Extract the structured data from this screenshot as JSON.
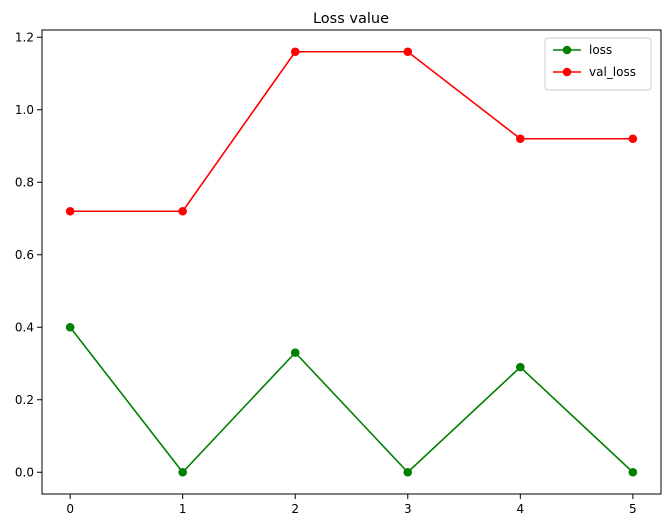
{
  "chart_data": {
    "type": "line",
    "title": "Loss value",
    "xlabel": "",
    "ylabel": "",
    "x": [
      0,
      1,
      2,
      3,
      4,
      5
    ],
    "xlim": [
      -0.25,
      5.25
    ],
    "ylim": [
      -0.06,
      1.22
    ],
    "xticks": [
      0,
      1,
      2,
      3,
      4,
      5
    ],
    "yticks": [
      0.0,
      0.2,
      0.4,
      0.6,
      0.8,
      1.0,
      1.2
    ],
    "ytick_labels": [
      "0.0",
      "0.2",
      "0.4",
      "0.6",
      "0.8",
      "1.0",
      "1.2"
    ],
    "grid": false,
    "legend_position": "top-right",
    "series": [
      {
        "name": "loss",
        "color": "#008000",
        "marker": "circle",
        "values": [
          0.4,
          0.0,
          0.33,
          0.0,
          0.29,
          0.0
        ]
      },
      {
        "name": "val_loss",
        "color": "#ff0000",
        "marker": "circle",
        "values": [
          0.72,
          0.72,
          1.16,
          1.16,
          0.92,
          0.92
        ]
      }
    ]
  }
}
